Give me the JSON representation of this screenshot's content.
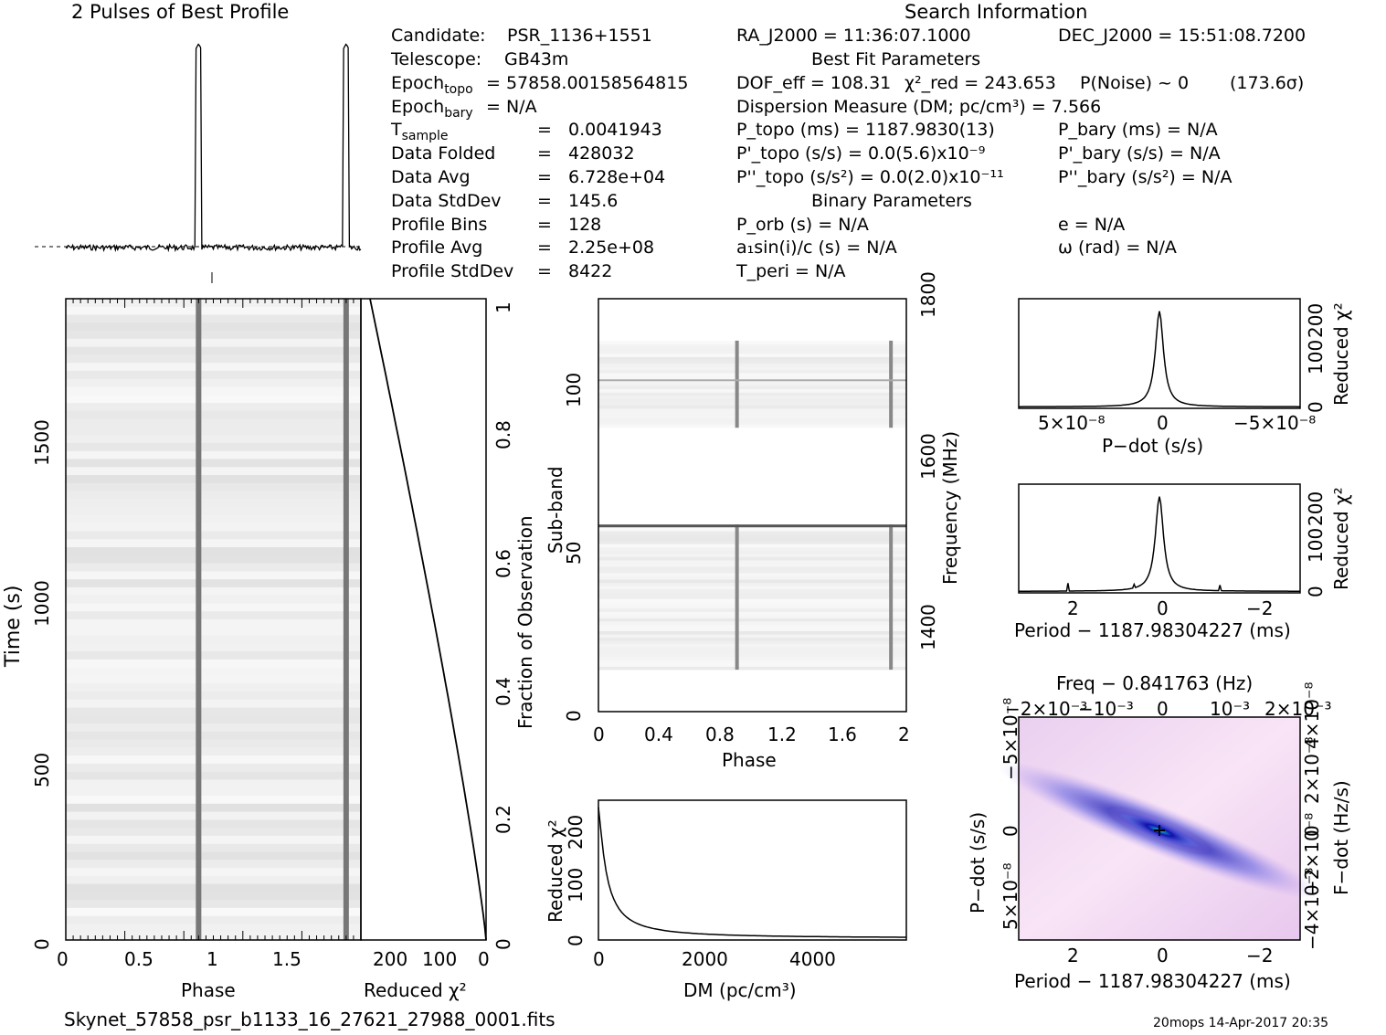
{
  "header": {
    "profile_title": "2 Pulses of Best Profile",
    "search_title": "Search Information",
    "best_fit_title": "Best Fit Parameters",
    "binary_title": "Binary Parameters"
  },
  "info_left": [
    {
      "label": "Candidate:",
      "value": "PSR_1136+1551"
    },
    {
      "label": "Telescope:",
      "value": "GB43m"
    },
    {
      "label": "Epoch_topo",
      "value": "= 57858.00158564815"
    },
    {
      "label": "Epoch_bary",
      "value": "= N/A"
    },
    {
      "label": "T_sample",
      "value": "0.0041943"
    },
    {
      "label": "Data Folded",
      "value": "428032"
    },
    {
      "label": "Data Avg",
      "value": "6.728e+04"
    },
    {
      "label": "Data StdDev",
      "value": "145.6"
    },
    {
      "label": "Profile Bins",
      "value": "128"
    },
    {
      "label": "Profile Avg",
      "value": "2.25e+08"
    },
    {
      "label": "Profile StdDev",
      "value": "8422"
    }
  ],
  "info_mid": {
    "ra": "RA_J2000 = 11:36:07.1000",
    "dec": "DEC_J2000 = 15:51:08.7200",
    "dof": "DOF_eff = 108.31",
    "chi2": "χ²_red = 243.653",
    "pnoise": "P(Noise) ~ 0",
    "sigma": "(173.6σ)",
    "dm": "Dispersion Measure (DM; pc/cm³) = 7.566",
    "ptopo": "P_topo (ms) = 1187.9830(13)",
    "pbary": "P_bary (ms) = N/A",
    "pdtopo": "P'_topo (s/s) = 0.0(5.6)x10⁻⁹",
    "pdbary": "P'_bary (s/s) = N/A",
    "pddtopo": "P''_topo (s/s²) = 0.0(2.0)x10⁻¹¹",
    "pddbary": "P''_bary (s/s²) = N/A",
    "porb": "P_orb (s) = N/A",
    "ecc": "e = N/A",
    "a1": "a₁sin(i)/c (s) = N/A",
    "omega": "ω (rad) = N/A",
    "tperi": "T_peri = N/A"
  },
  "footer": {
    "filename": "Skynet_57858_psr_b1133_16_27621_27988_0001.fits",
    "stamp": "20mops 14-Apr-2017 20:35"
  },
  "chart_data": [
    {
      "type": "line",
      "name": "profile",
      "title": "2 Pulses of Best Profile",
      "x_range": [
        0,
        2
      ],
      "pulse_phases": [
        0.9,
        1.9
      ]
    },
    {
      "type": "heatmap",
      "name": "time-phase",
      "xlabel": "Phase",
      "ylabel": "Time (s)",
      "xticks": [
        "0",
        "0.5",
        "1",
        "1.5"
      ],
      "yticks": [
        "0",
        "500",
        "1000",
        "1500"
      ],
      "ylim": [
        0,
        1850
      ],
      "xlim": [
        0,
        2
      ]
    },
    {
      "type": "line",
      "name": "reduced-chi2-vs-fraction",
      "xlabel": "Reduced χ²",
      "ylabel": "Fraction of Observation",
      "xticks": [
        "200",
        "100",
        "0"
      ],
      "yticks": [
        "0",
        "0.2",
        "0.4",
        "0.6",
        "0.8",
        "1"
      ]
    },
    {
      "type": "heatmap",
      "name": "subband-phase",
      "xlabel": "Phase",
      "ylabel": "Sub-band",
      "y2label": "Frequency (MHz)",
      "xticks": [
        "0",
        "0.4",
        "0.8",
        "1.2",
        "1.6",
        "2"
      ],
      "yticks": [
        "0",
        "50",
        "100"
      ],
      "y2ticks": [
        "1400",
        "1600",
        "1800"
      ]
    },
    {
      "type": "line",
      "name": "chi2-vs-dm",
      "xlabel": "DM (pc/cm³)",
      "ylabel": "Reduced χ²",
      "xticks": [
        "0",
        "2000",
        "4000"
      ],
      "yticks": [
        "0",
        "100",
        "200"
      ],
      "xlim": [
        0,
        5800
      ],
      "ylim": [
        0,
        260
      ]
    },
    {
      "type": "line",
      "name": "chi2-vs-pdot",
      "xlabel": "P−dot (s/s)",
      "ylabel": "Reduced χ²",
      "xticks": [
        "5×10⁻⁸",
        "0",
        "−5×10⁻⁸"
      ],
      "yticks": [
        "0",
        "100",
        "200"
      ]
    },
    {
      "type": "line",
      "name": "chi2-vs-period",
      "xlabel": "Period − 1187.98304227 (ms)",
      "ylabel": "Reduced χ²",
      "xticks": [
        "2",
        "0",
        "−2"
      ],
      "yticks": [
        "0",
        "100",
        "200"
      ]
    },
    {
      "type": "heatmap",
      "name": "pdot-period",
      "title": "Freq − 0.841763 (Hz)",
      "xlabel": "Period − 1187.98304227 (ms)",
      "ylabel": "P−dot (s/s)",
      "y2label": "F−dot (Hz/s)",
      "xticks": [
        "2",
        "0",
        "−2"
      ],
      "x2ticks": [
        "−2×10⁻³",
        "−10⁻³",
        "0",
        "10⁻³",
        "2×10⁻³"
      ],
      "yticks": [
        "5×10⁻⁸",
        "0",
        "−5×10⁻⁸"
      ],
      "y2ticks": [
        "−4×10⁻⁸",
        "−2×10⁻⁸",
        "0",
        "2×10⁻⁸",
        "4×10⁻⁸"
      ]
    }
  ],
  "colors": {
    "ink": "#000000",
    "grey": "#555555",
    "magenta": "#f3d3f3",
    "blue": "#2020d0",
    "cyan": "#20c8c8"
  }
}
